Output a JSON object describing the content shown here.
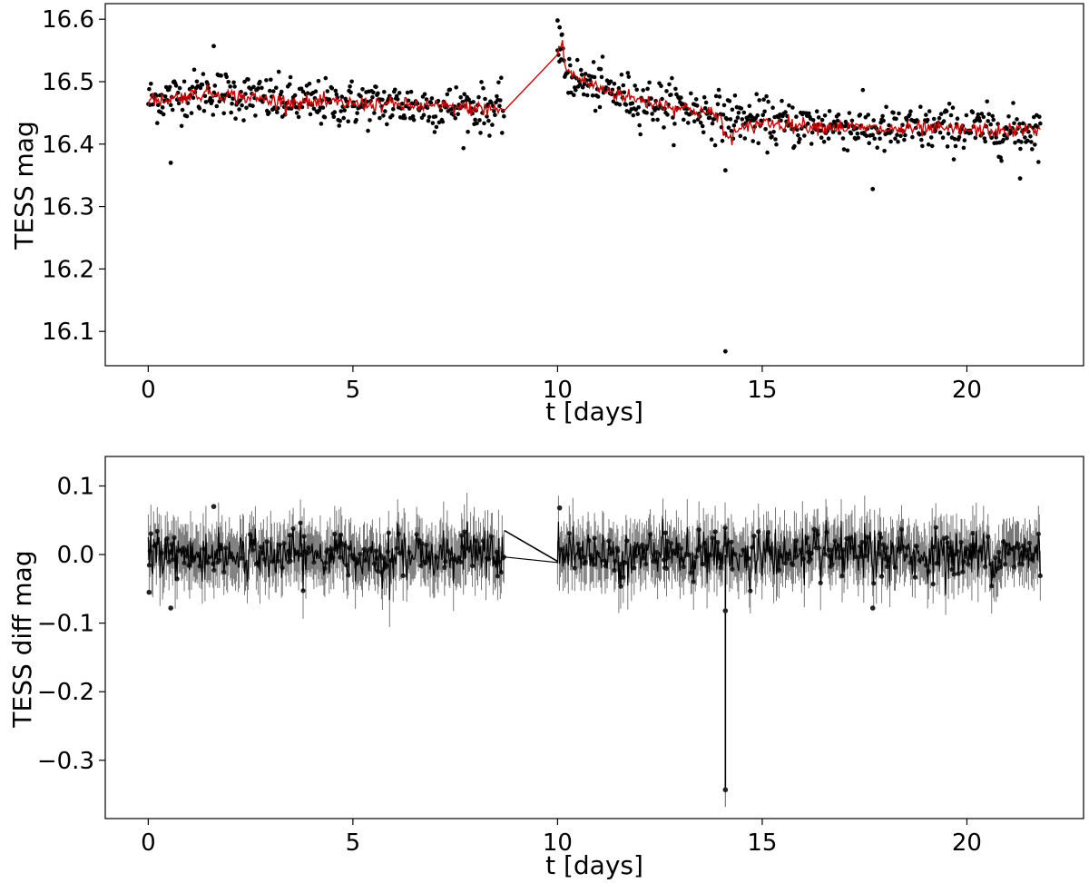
{
  "chart_data": [
    {
      "type": "scatter",
      "title": "",
      "xlabel": "t [days]",
      "ylabel": "TESS mag",
      "xlim": [
        -1.05,
        22.85
      ],
      "ylim": [
        16.625,
        16.045
      ],
      "y_inverted": true,
      "grid": false,
      "legend": "none",
      "xticks": [
        0,
        5,
        10,
        15,
        20
      ],
      "yticks": [
        16.1,
        16.2,
        16.3,
        16.4,
        16.5,
        16.6
      ],
      "ytick_labels": [
        "16.1",
        "16.2",
        "16.3",
        "16.4",
        "16.5",
        "16.6"
      ],
      "series": [
        {
          "kind": "points",
          "color": "#000000",
          "note_on_values": "approximately 970 observations, ~0.02 d cadence over t in [0, 8.7] and [10.0, 21.8]; t is in data units (days)",
          "segments": [
            {
              "t_start": 0.0,
              "t_end": 8.7,
              "trend_t": [
                0,
                0.5,
                1.0,
                1.5,
                2.0,
                3.0,
                4.0,
                5.0,
                6.0,
                7.0,
                8.0,
                8.7
              ],
              "trend_mag": [
                16.47,
                16.475,
                16.48,
                16.485,
                16.48,
                16.47,
                16.465,
                16.465,
                16.463,
                16.46,
                16.458,
                16.455
              ],
              "scatter_mag": 0.022
            },
            {
              "t_start": 10.0,
              "t_end": 21.8,
              "trend_t": [
                10.0,
                10.2,
                10.5,
                11.0,
                12.0,
                13.0,
                14.0,
                15.0,
                16.0,
                17.0,
                18.0,
                19.0,
                20.0,
                21.0,
                21.8
              ],
              "trend_mag": [
                16.55,
                16.52,
                16.5,
                16.49,
                16.47,
                16.46,
                16.445,
                16.435,
                16.43,
                16.43,
                16.42,
                16.425,
                16.425,
                16.42,
                16.425
              ],
              "scatter_mag": 0.022
            }
          ],
          "notable_points": [
            {
              "t": 0.55,
              "mag": 16.37
            },
            {
              "t": 1.6,
              "mag": 16.557
            },
            {
              "t": 10.0,
              "mag": 16.598
            },
            {
              "t": 10.05,
              "mag": 16.587
            },
            {
              "t": 10.1,
              "mag": 16.575
            },
            {
              "t": 14.1,
              "mag": 16.068
            },
            {
              "t": 14.1,
              "mag": 16.358
            },
            {
              "t": 17.7,
              "mag": 16.328
            },
            {
              "t": 21.3,
              "mag": 16.345
            }
          ]
        },
        {
          "kind": "line",
          "color": "#cc0000",
          "x": [
            0,
            0.5,
            1.0,
            1.5,
            2.0,
            3.0,
            4.0,
            5.0,
            6.0,
            7.0,
            8.0,
            8.7,
            10.0,
            10.1,
            10.2,
            10.5,
            11.0,
            12.0,
            13.0,
            14.0,
            14.05,
            15.0,
            16.0,
            17.0,
            18.0,
            19.0,
            20.0,
            21.0,
            21.8
          ],
          "y": [
            16.47,
            16.472,
            16.478,
            16.482,
            16.478,
            16.47,
            16.466,
            16.465,
            16.463,
            16.46,
            16.457,
            16.455,
            16.545,
            16.565,
            16.52,
            16.505,
            16.49,
            16.47,
            16.458,
            16.445,
            16.41,
            16.435,
            16.43,
            16.427,
            16.423,
            16.424,
            16.423,
            16.42,
            16.425
          ]
        }
      ]
    },
    {
      "type": "line",
      "title": "",
      "xlabel": "t [days]",
      "ylabel": "TESS diff mag",
      "xlim": [
        -1.05,
        22.85
      ],
      "ylim": [
        0.143,
        -0.385
      ],
      "y_inverted": true,
      "grid": false,
      "legend": "none",
      "xticks": [
        0,
        5,
        10,
        15,
        20
      ],
      "yticks": [
        -0.3,
        -0.2,
        -0.1,
        0.0,
        0.1
      ],
      "ytick_labels": [
        "−0.3",
        "−0.2",
        "−0.1",
        "0.0",
        "0.1"
      ],
      "series": [
        {
          "kind": "errorbar-line",
          "color": "#000000",
          "errorbar_color": "#777777",
          "note_on_values": "approximately 970 residual points scattered about 0.0 with ~0.025 spread and ~0.035 error bars; values are in magnitudes",
          "segments": [
            {
              "t_start": 0.0,
              "t_end": 8.7,
              "center": 0.0,
              "spread": 0.022,
              "err": 0.035
            },
            {
              "t_start": 10.0,
              "t_end": 21.8,
              "center": 0.0,
              "spread": 0.022,
              "err": 0.035
            }
          ],
          "gap_connector": {
            "x": [
              8.7,
              10.0
            ],
            "y": [
              0.035,
              -0.01
            ]
          },
          "notable_points": [
            {
              "t": 0.02,
              "value": -0.055
            },
            {
              "t": 0.55,
              "value": -0.078
            },
            {
              "t": 1.6,
              "value": 0.07
            },
            {
              "t": 10.05,
              "value": 0.068
            },
            {
              "t": 14.1,
              "value": -0.343,
              "err": 0.025
            },
            {
              "t": 14.1,
              "value": -0.082
            },
            {
              "t": 17.7,
              "value": -0.078
            }
          ]
        }
      ]
    }
  ]
}
